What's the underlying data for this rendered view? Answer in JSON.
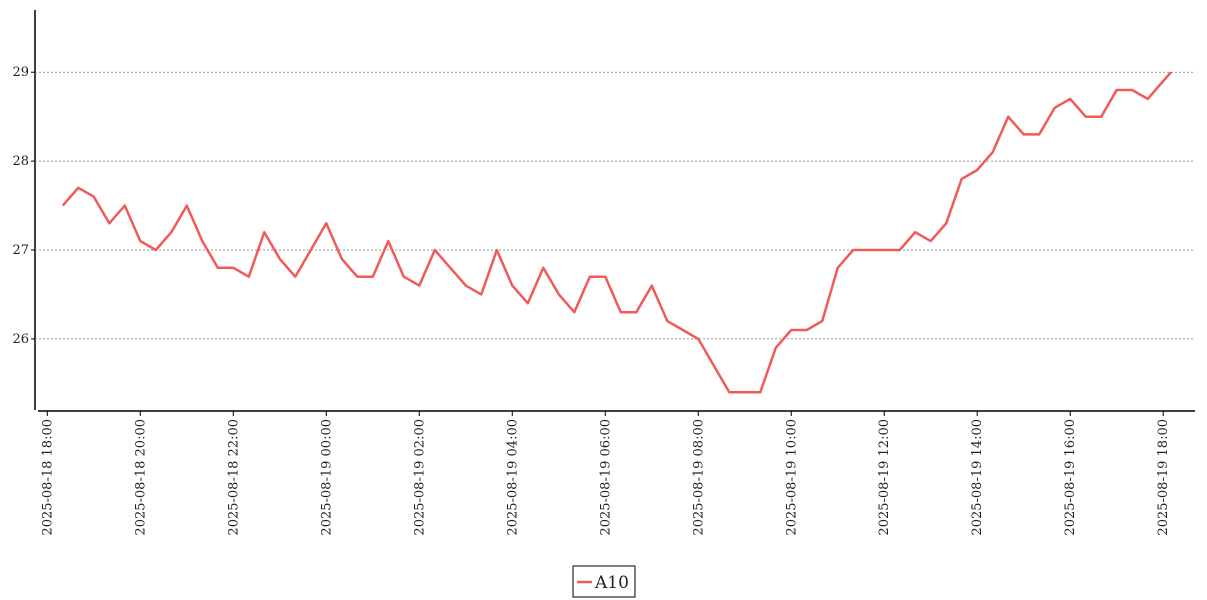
{
  "chart_data": {
    "type": "line",
    "x": [
      "2025-08-18 18:20",
      "2025-08-18 18:30",
      "2025-08-18 18:40",
      "2025-08-18 19:00",
      "2025-08-18 19:20",
      "2025-08-18 19:40",
      "2025-08-18 20:00",
      "2025-08-18 20:20",
      "2025-08-18 20:40",
      "2025-08-18 21:00",
      "2025-08-18 21:20",
      "2025-08-18 21:40",
      "2025-08-18 22:00",
      "2025-08-18 22:20",
      "2025-08-18 22:40",
      "2025-08-18 23:00",
      "2025-08-18 23:20",
      "2025-08-18 23:40",
      "2025-08-19 00:00",
      "2025-08-19 00:20",
      "2025-08-19 00:40",
      "2025-08-19 01:00",
      "2025-08-19 01:20",
      "2025-08-19 01:40",
      "2025-08-19 02:00",
      "2025-08-19 02:20",
      "2025-08-19 02:40",
      "2025-08-19 03:00",
      "2025-08-19 03:20",
      "2025-08-19 03:40",
      "2025-08-19 04:00",
      "2025-08-19 04:20",
      "2025-08-19 04:40",
      "2025-08-19 05:00",
      "2025-08-19 05:20",
      "2025-08-19 05:40",
      "2025-08-19 06:00",
      "2025-08-19 06:20",
      "2025-08-19 06:40",
      "2025-08-19 07:00",
      "2025-08-19 07:20",
      "2025-08-19 07:40",
      "2025-08-19 08:00",
      "2025-08-19 08:20",
      "2025-08-19 08:40",
      "2025-08-19 09:00",
      "2025-08-19 09:20",
      "2025-08-19 09:40",
      "2025-08-19 10:00",
      "2025-08-19 10:20",
      "2025-08-19 10:40",
      "2025-08-19 11:00",
      "2025-08-19 11:20",
      "2025-08-19 11:40",
      "2025-08-19 12:00",
      "2025-08-19 12:20",
      "2025-08-19 12:40",
      "2025-08-19 13:00",
      "2025-08-19 13:20",
      "2025-08-19 13:40",
      "2025-08-19 14:00",
      "2025-08-19 14:20",
      "2025-08-19 14:40",
      "2025-08-19 15:00",
      "2025-08-19 15:20",
      "2025-08-19 15:40",
      "2025-08-19 16:00",
      "2025-08-19 16:20",
      "2025-08-19 16:40",
      "2025-08-19 17:00",
      "2025-08-19 17:20",
      "2025-08-19 17:40",
      "2025-08-19 18:00",
      "2025-08-19 18:10"
    ],
    "series": [
      {
        "name": "A10",
        "color": "#f05a5a",
        "values": [
          27.5,
          27.6,
          27.7,
          27.6,
          27.3,
          27.5,
          27.1,
          27.0,
          27.2,
          27.5,
          27.1,
          26.8,
          26.8,
          26.7,
          27.2,
          26.9,
          26.7,
          27.0,
          27.3,
          26.9,
          26.7,
          26.7,
          27.1,
          26.7,
          26.6,
          27.0,
          26.8,
          26.6,
          26.5,
          27.0,
          26.6,
          26.4,
          26.8,
          26.5,
          26.3,
          26.7,
          26.7,
          26.3,
          26.3,
          26.6,
          26.2,
          26.1,
          26.0,
          25.7,
          25.4,
          25.4,
          25.4,
          25.9,
          26.1,
          26.1,
          26.2,
          26.8,
          27.0,
          27.0,
          27.0,
          27.0,
          27.2,
          27.1,
          27.3,
          27.8,
          27.9,
          28.1,
          28.5,
          28.3,
          28.3,
          28.6,
          28.7,
          28.5,
          28.5,
          28.8,
          28.8,
          28.7,
          28.9,
          29.0
        ]
      }
    ],
    "xlim": [
      "2025-08-18 17:48",
      "2025-08-19 18:41"
    ],
    "xticks": [
      "2025-08-18 18:00",
      "2025-08-18 20:00",
      "2025-08-18 22:00",
      "2025-08-19 00:00",
      "2025-08-19 02:00",
      "2025-08-19 04:00",
      "2025-08-19 06:00",
      "2025-08-19 08:00",
      "2025-08-19 10:00",
      "2025-08-19 12:00",
      "2025-08-19 14:00",
      "2025-08-19 16:00",
      "2025-08-19 18:00"
    ],
    "ylim": [
      25.2,
      29.7
    ],
    "yticks": [
      26,
      27,
      28,
      29
    ],
    "grid": true,
    "legend": "bottom"
  }
}
